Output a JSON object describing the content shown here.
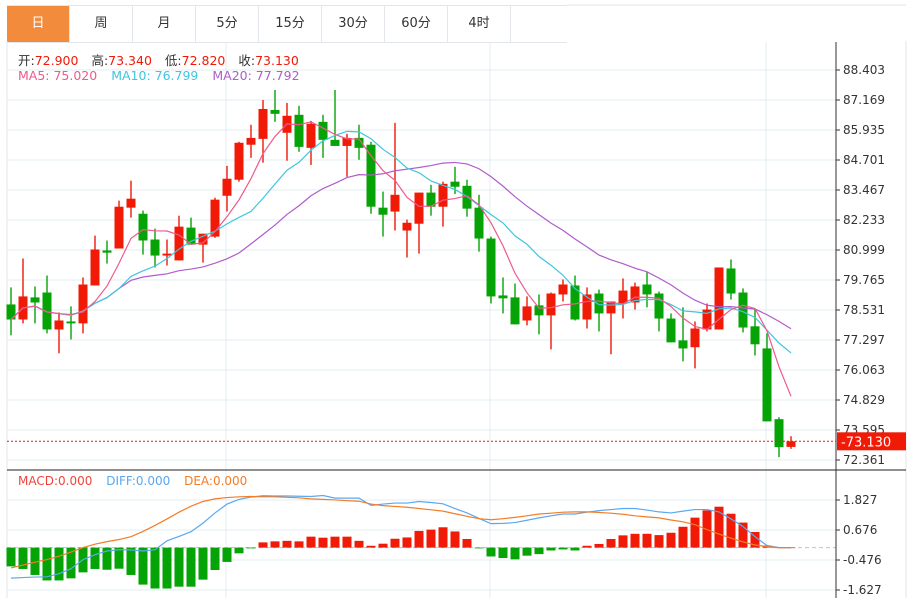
{
  "tabs": [
    {
      "label": "日",
      "active": true
    },
    {
      "label": "周"
    },
    {
      "label": "月"
    },
    {
      "label": "5分"
    },
    {
      "label": "15分"
    },
    {
      "label": "30分"
    },
    {
      "label": "60分"
    },
    {
      "label": "4时"
    }
  ],
  "ohlc_info": {
    "open_label": "开:",
    "open": "72.900",
    "high_label": "高:",
    "high": "73.340",
    "low_label": "低:",
    "low": "72.820",
    "close_label": "收:",
    "close": "73.130"
  },
  "ma_info": {
    "ma5": "MA5: 75.020",
    "ma10": "MA10: 76.799",
    "ma20": "MA20: 77.792"
  },
  "macd_info": {
    "macd": "MACD:0.000",
    "diff": "DIFF:0.000",
    "dea": "DEA:0.000"
  },
  "colors": {
    "up": "#f01a06",
    "down": "#06a306",
    "ma5": "#ee5a8c",
    "ma10": "#3ec6df",
    "ma20": "#b05ccb",
    "diff": "#5aa8f0",
    "dea": "#f47c26",
    "tab_active": "#f28c3c"
  },
  "chart_data": {
    "type": "candlestick",
    "price_ticks": [
      "88.403",
      "87.169",
      "85.935",
      "84.701",
      "83.467",
      "82.233",
      "80.999",
      "79.765",
      "78.531",
      "77.297",
      "76.063",
      "74.829",
      "73.595",
      "72.361"
    ],
    "last_price": "73.130",
    "macd_ticks": [
      "1.827",
      "0.676",
      "-0.476",
      "-1.627"
    ],
    "candles": [
      [
        78.76,
        79.46,
        77.49,
        78.14
      ],
      [
        78.14,
        80.65,
        77.98,
        79.09
      ],
      [
        79.05,
        79.5,
        77.98,
        78.84
      ],
      [
        79.25,
        79.95,
        77.57,
        77.73
      ],
      [
        77.73,
        78.43,
        76.75,
        78.1
      ],
      [
        78.06,
        78.68,
        77.32,
        77.98
      ],
      [
        77.98,
        79.87,
        77.57,
        79.58
      ],
      [
        79.54,
        81.59,
        79.54,
        81.02
      ],
      [
        80.98,
        81.39,
        80.44,
        80.89
      ],
      [
        81.06,
        83.03,
        81.06,
        82.78
      ],
      [
        82.74,
        83.85,
        82.33,
        83.11
      ],
      [
        82.49,
        82.62,
        80.81,
        81.39
      ],
      [
        81.43,
        81.88,
        80.28,
        80.77
      ],
      [
        80.77,
        81.43,
        80.36,
        80.85
      ],
      [
        80.57,
        82.41,
        80.57,
        81.96
      ],
      [
        81.92,
        82.33,
        81.22,
        81.22
      ],
      [
        81.22,
        81.67,
        80.48,
        81.67
      ],
      [
        81.55,
        83.15,
        81.5,
        83.07
      ],
      [
        83.23,
        84.46,
        82.58,
        83.93
      ],
      [
        83.89,
        85.45,
        83.81,
        85.41
      ],
      [
        85.33,
        86.15,
        84.79,
        85.61
      ],
      [
        85.57,
        87.17,
        84.59,
        86.8
      ],
      [
        86.76,
        87.58,
        86.27,
        86.6
      ],
      [
        85.82,
        87.05,
        84.67,
        86.52
      ],
      [
        86.56,
        86.93,
        85.04,
        85.24
      ],
      [
        85.2,
        86.31,
        84.5,
        86.19
      ],
      [
        86.27,
        86.56,
        84.79,
        85.53
      ],
      [
        85.53,
        87.58,
        85.28,
        85.28
      ],
      [
        85.28,
        85.78,
        84.01,
        85.61
      ],
      [
        85.61,
        86.15,
        84.71,
        85.2
      ],
      [
        85.33,
        85.45,
        82.49,
        82.78
      ],
      [
        82.74,
        83.4,
        81.55,
        82.45
      ],
      [
        82.58,
        86.23,
        81.8,
        83.27
      ],
      [
        81.8,
        82.25,
        80.69,
        82.12
      ],
      [
        82.08,
        83.36,
        80.85,
        83.36
      ],
      [
        83.36,
        83.68,
        82.41,
        82.78
      ],
      [
        82.78,
        83.81,
        81.96,
        83.72
      ],
      [
        83.81,
        84.42,
        83.3,
        83.6
      ],
      [
        83.64,
        83.89,
        82.37,
        82.7
      ],
      [
        82.74,
        83.27,
        80.93,
        81.47
      ],
      [
        81.47,
        81.55,
        78.8,
        79.09
      ],
      [
        79.13,
        79.87,
        78.39,
        79.01
      ],
      [
        79.05,
        79.62,
        77.94,
        77.94
      ],
      [
        78.1,
        79.09,
        77.9,
        78.68
      ],
      [
        78.72,
        79.17,
        77.53,
        78.31
      ],
      [
        78.31,
        79.25,
        76.91,
        79.21
      ],
      [
        79.17,
        79.79,
        78.88,
        79.58
      ],
      [
        79.54,
        79.95,
        78.1,
        78.14
      ],
      [
        78.14,
        79.46,
        77.77,
        79.17
      ],
      [
        79.21,
        79.37,
        77.65,
        78.39
      ],
      [
        78.39,
        78.88,
        76.71,
        78.88
      ],
      [
        78.8,
        79.83,
        78.18,
        79.33
      ],
      [
        78.84,
        79.66,
        78.55,
        79.5
      ],
      [
        79.58,
        80.11,
        78.64,
        79.17
      ],
      [
        79.21,
        79.29,
        77.65,
        78.18
      ],
      [
        78.18,
        78.39,
        77.2,
        77.2
      ],
      [
        77.28,
        78.64,
        76.42,
        76.95
      ],
      [
        77.0,
        78.06,
        76.13,
        77.77
      ],
      [
        77.73,
        78.8,
        77.65,
        78.55
      ],
      [
        77.73,
        80.28,
        77.73,
        80.28
      ],
      [
        80.24,
        80.61,
        78.96,
        79.21
      ],
      [
        79.25,
        79.42,
        77.61,
        77.81
      ],
      [
        77.86,
        78.55,
        76.66,
        77.12
      ],
      [
        76.95,
        77.57,
        73.95,
        73.95
      ],
      [
        74.04,
        74.12,
        72.48,
        72.89
      ],
      [
        72.9,
        73.34,
        72.82,
        73.13
      ]
    ],
    "macd_hist": [
      -0.72,
      -0.82,
      -1.05,
      -1.26,
      -1.26,
      -1.18,
      -0.95,
      -0.82,
      -0.85,
      -0.81,
      -1.05,
      -1.42,
      -1.57,
      -1.57,
      -1.5,
      -1.5,
      -1.23,
      -0.86,
      -0.55,
      -0.22,
      -0.03,
      0.2,
      0.24,
      0.26,
      0.24,
      0.42,
      0.38,
      0.42,
      0.42,
      0.26,
      0.07,
      0.15,
      0.34,
      0.39,
      0.64,
      0.69,
      0.78,
      0.62,
      0.33,
      -0.03,
      -0.34,
      -0.4,
      -0.45,
      -0.31,
      -0.25,
      -0.11,
      -0.07,
      -0.11,
      0.07,
      0.14,
      0.33,
      0.47,
      0.53,
      0.53,
      0.48,
      0.57,
      0.8,
      1.15,
      1.43,
      1.57,
      1.3,
      0.96,
      0.6,
      0.08,
      0.0,
      0.0
    ],
    "diff": [
      -1.17,
      -1.15,
      -1.13,
      -1.12,
      -1.0,
      -0.81,
      -0.46,
      -0.27,
      -0.13,
      -0.08,
      -0.09,
      -0.13,
      -0.08,
      0.26,
      0.43,
      0.61,
      0.94,
      1.33,
      1.67,
      1.85,
      1.94,
      1.99,
      1.98,
      1.98,
      1.97,
      1.96,
      2.0,
      1.9,
      1.9,
      1.9,
      1.62,
      1.67,
      1.71,
      1.71,
      1.77,
      1.73,
      1.68,
      1.5,
      1.33,
      1.12,
      0.92,
      0.93,
      0.96,
      1.05,
      1.14,
      1.22,
      1.29,
      1.29,
      1.36,
      1.42,
      1.46,
      1.5,
      1.5,
      1.44,
      1.37,
      1.33,
      1.4,
      1.46,
      1.46,
      1.37,
      1.1,
      0.81,
      0.42,
      0.08,
      0.0,
      0.0
    ],
    "dea": [
      -0.78,
      -0.67,
      -0.56,
      -0.46,
      -0.33,
      -0.17,
      0.0,
      0.13,
      0.23,
      0.31,
      0.42,
      0.62,
      0.85,
      1.1,
      1.36,
      1.59,
      1.77,
      1.87,
      1.92,
      1.95,
      1.96,
      1.95,
      1.95,
      1.93,
      1.91,
      1.87,
      1.85,
      1.83,
      1.8,
      1.78,
      1.67,
      1.61,
      1.58,
      1.55,
      1.5,
      1.45,
      1.4,
      1.3,
      1.2,
      1.11,
      1.07,
      1.11,
      1.16,
      1.22,
      1.29,
      1.32,
      1.36,
      1.37,
      1.37,
      1.35,
      1.32,
      1.28,
      1.22,
      1.18,
      1.14,
      1.06,
      0.99,
      0.88,
      0.69,
      0.52,
      0.36,
      0.22,
      0.1,
      0.04,
      0.0,
      0.0
    ]
  }
}
